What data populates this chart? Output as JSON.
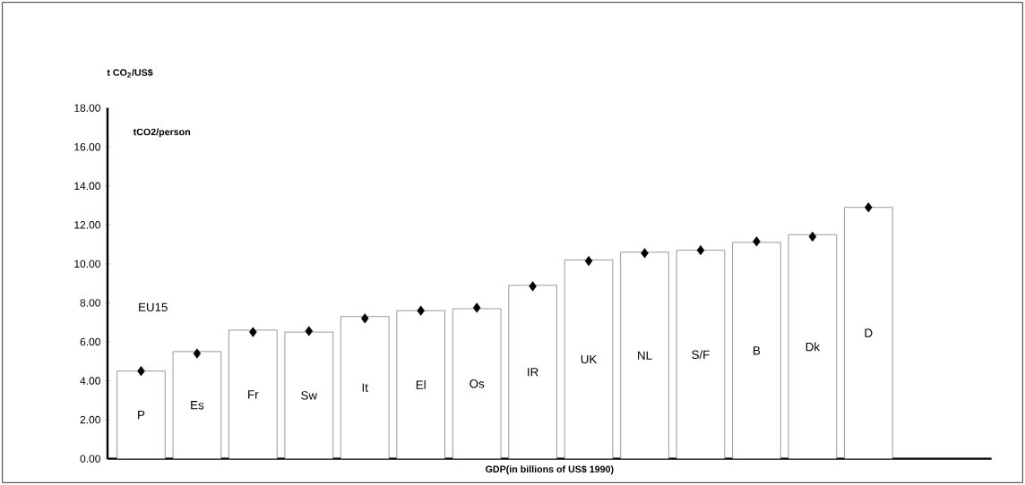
{
  "chart_data": {
    "type": "bar",
    "ylabel": "t CO$_{2}$/US$",
    "xlabel": "GDP(in billions of US$ 1990)",
    "annotations": [
      "tCO2/person",
      "EU15"
    ],
    "categories": [
      "P",
      "Es",
      "Fr",
      "Sw",
      "It",
      "El",
      "Os",
      "IR",
      "UK",
      "NL",
      "S/F",
      "B",
      "Dk",
      "D"
    ],
    "series": [
      {
        "color": "#ffffff",
        "values": [
          4.5,
          5.5,
          6.6,
          6.5,
          7.3,
          7.6,
          7.7,
          8.9,
          10.2,
          10.6,
          10.7,
          11.1,
          11.5,
          12.9
        ]
      },
      {
        "type": "scatter",
        "color": "#000000",
        "marker": "diamond",
        "values": [
          4.5,
          5.4,
          6.5,
          6.55,
          7.2,
          7.6,
          7.75,
          8.85,
          10.15,
          10.55,
          10.7,
          11.15,
          11.4,
          12.9
        ]
      }
    ],
    "ylim": [
      0,
      18
    ],
    "yticks": [
      {
        "value": 0,
        "label": "0.00"
      },
      {
        "value": 2,
        "label": "2.00"
      },
      {
        "value": 4,
        "label": "4.00"
      },
      {
        "value": 6,
        "label": "6.00"
      },
      {
        "value": 8,
        "label": "8.00"
      },
      {
        "value": 10,
        "label": "10.00"
      },
      {
        "value": 12,
        "label": "12.00"
      },
      {
        "value": 14,
        "label": "14.00"
      },
      {
        "value": 16,
        "label": "16.00"
      },
      {
        "value": 18,
        "label": "18.00"
      }
    ],
    "tick_labels": "y",
    "grid": false
  }
}
